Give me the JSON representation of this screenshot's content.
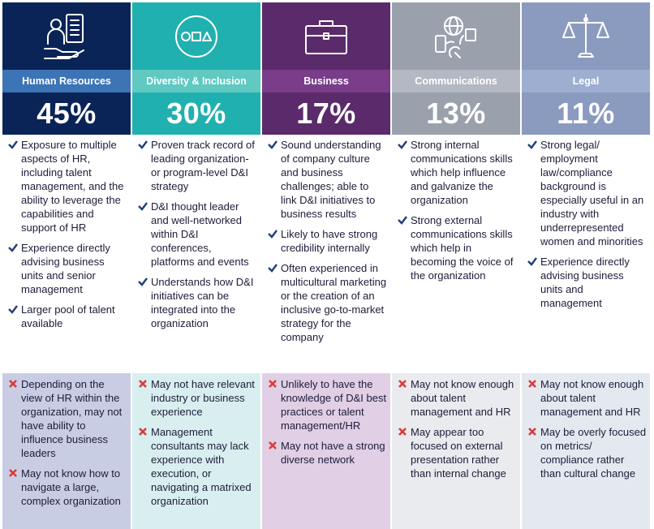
{
  "colors": {
    "check": "#1f3f7a",
    "cross": "#d93a3a",
    "human_resources": "#0a2458",
    "diversity_inclusion": "#21b0b0",
    "business": "#5b2a6a",
    "communications": "#9aa1ad",
    "legal": "#8b9abf"
  },
  "columns": [
    {
      "title": "Human Resources",
      "percent": "45%",
      "icon": "hr-person-document-icon",
      "pros": [
        "Exposure to multiple aspects of HR, including talent management, and the ability to leverage the capabilities and support of HR",
        "Experience directly advising business units and senior management",
        "Larger pool of talent available"
      ],
      "cons": [
        "Depending on the view of HR within the organization, may not have ability to influence business leaders",
        "May not know how to navigate a large, complex organization"
      ]
    },
    {
      "title": "Diversity & Inclusion",
      "percent": "30%",
      "icon": "shapes-circle-icon",
      "pros": [
        "Proven track record of leading organization- or program-level D&I strategy",
        "D&I thought leader and well-networked within D&I conferences, platforms and events",
        "Understands how D&I initiatives can be integrated into the organization"
      ],
      "cons": [
        "May not have relevant industry or business experience",
        "Management consultants may lack experience with execution, or navigating a matrixed organization"
      ]
    },
    {
      "title": "Business",
      "percent": "17%",
      "icon": "briefcase-icon",
      "pros": [
        "Sound understanding of company culture and business challenges; able to link D&I initiatives to business results",
        "Likely to have strong credibility internally",
        "Often experienced in multicultural marketing or the creation of an inclusive go-to-market strategy for the company"
      ],
      "cons": [
        "Unlikely to have the knowledge of D&I best practices or talent management/HR",
        "May not have a strong diverse network"
      ]
    },
    {
      "title": "Communications",
      "percent": "13%",
      "icon": "globe-devices-icon",
      "pros": [
        "Strong internal communications skills which help influence and galvanize the organization",
        "Strong external communications skills which help in becoming the voice of the organization"
      ],
      "cons": [
        "May not know enough about talent management and HR",
        "May appear too focused on external presentation rather than internal change"
      ]
    },
    {
      "title": "Legal",
      "percent": "11%",
      "icon": "scales-icon",
      "pros": [
        "Strong legal/ employment law/compliance background is especially useful in an industry with underrepresented women and minorities",
        "Experience directly advising business units and management"
      ],
      "cons": [
        "May not know enough about talent management and HR",
        "May be overly focused on metrics/ compliance rather than cultural change"
      ]
    }
  ]
}
